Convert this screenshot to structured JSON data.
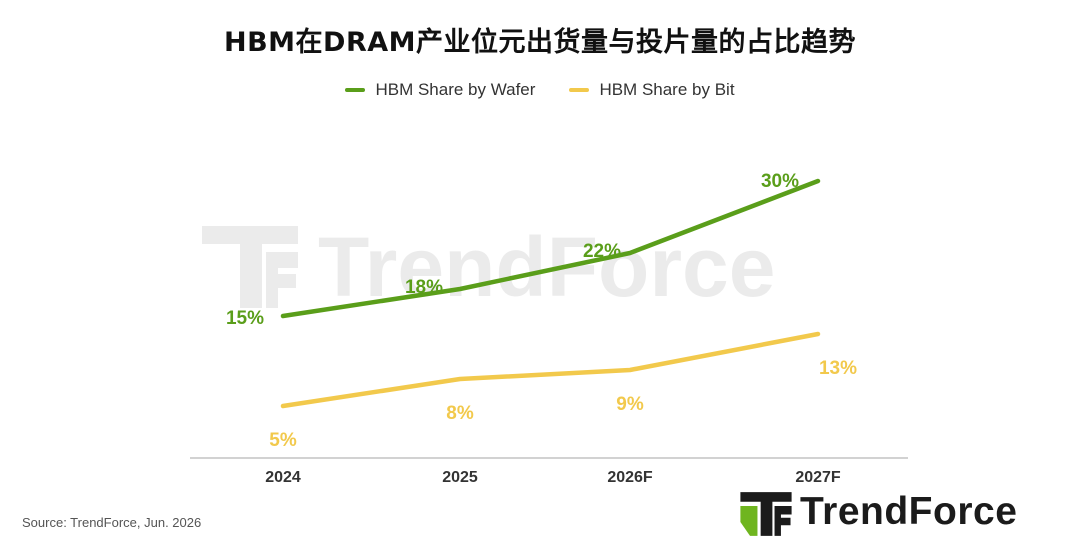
{
  "chart_data": {
    "type": "line",
    "title": "HBM在DRAM产业位元出货量与投片量的占比趋势",
    "categories": [
      "2024",
      "2025",
      "2026F",
      "2027F"
    ],
    "series": [
      {
        "name": "HBM Share by Wafer",
        "values": [
          15,
          18,
          22,
          30
        ],
        "labels": [
          "15%",
          "18%",
          "22%",
          "30%"
        ],
        "color": "#5a9e1a"
      },
      {
        "name": "HBM Share by Bit",
        "values": [
          5,
          8,
          9,
          13
        ],
        "labels": [
          "5%",
          "8%",
          "9%",
          "13%"
        ],
        "color": "#f2c94c"
      }
    ],
    "xlabel": "",
    "ylabel": "",
    "ylim": [
      0,
      32
    ],
    "grid": false,
    "legend": "top-center"
  },
  "source": "Source: TrendForce, Jun. 2026",
  "brand": {
    "name": "TrendForce"
  },
  "watermark": {
    "text": "TrendForce"
  },
  "colors": {
    "green": "#5a9e1a",
    "yellow": "#f2c94c",
    "axis": "#bdbdbd",
    "text": "#1b1b1b"
  }
}
